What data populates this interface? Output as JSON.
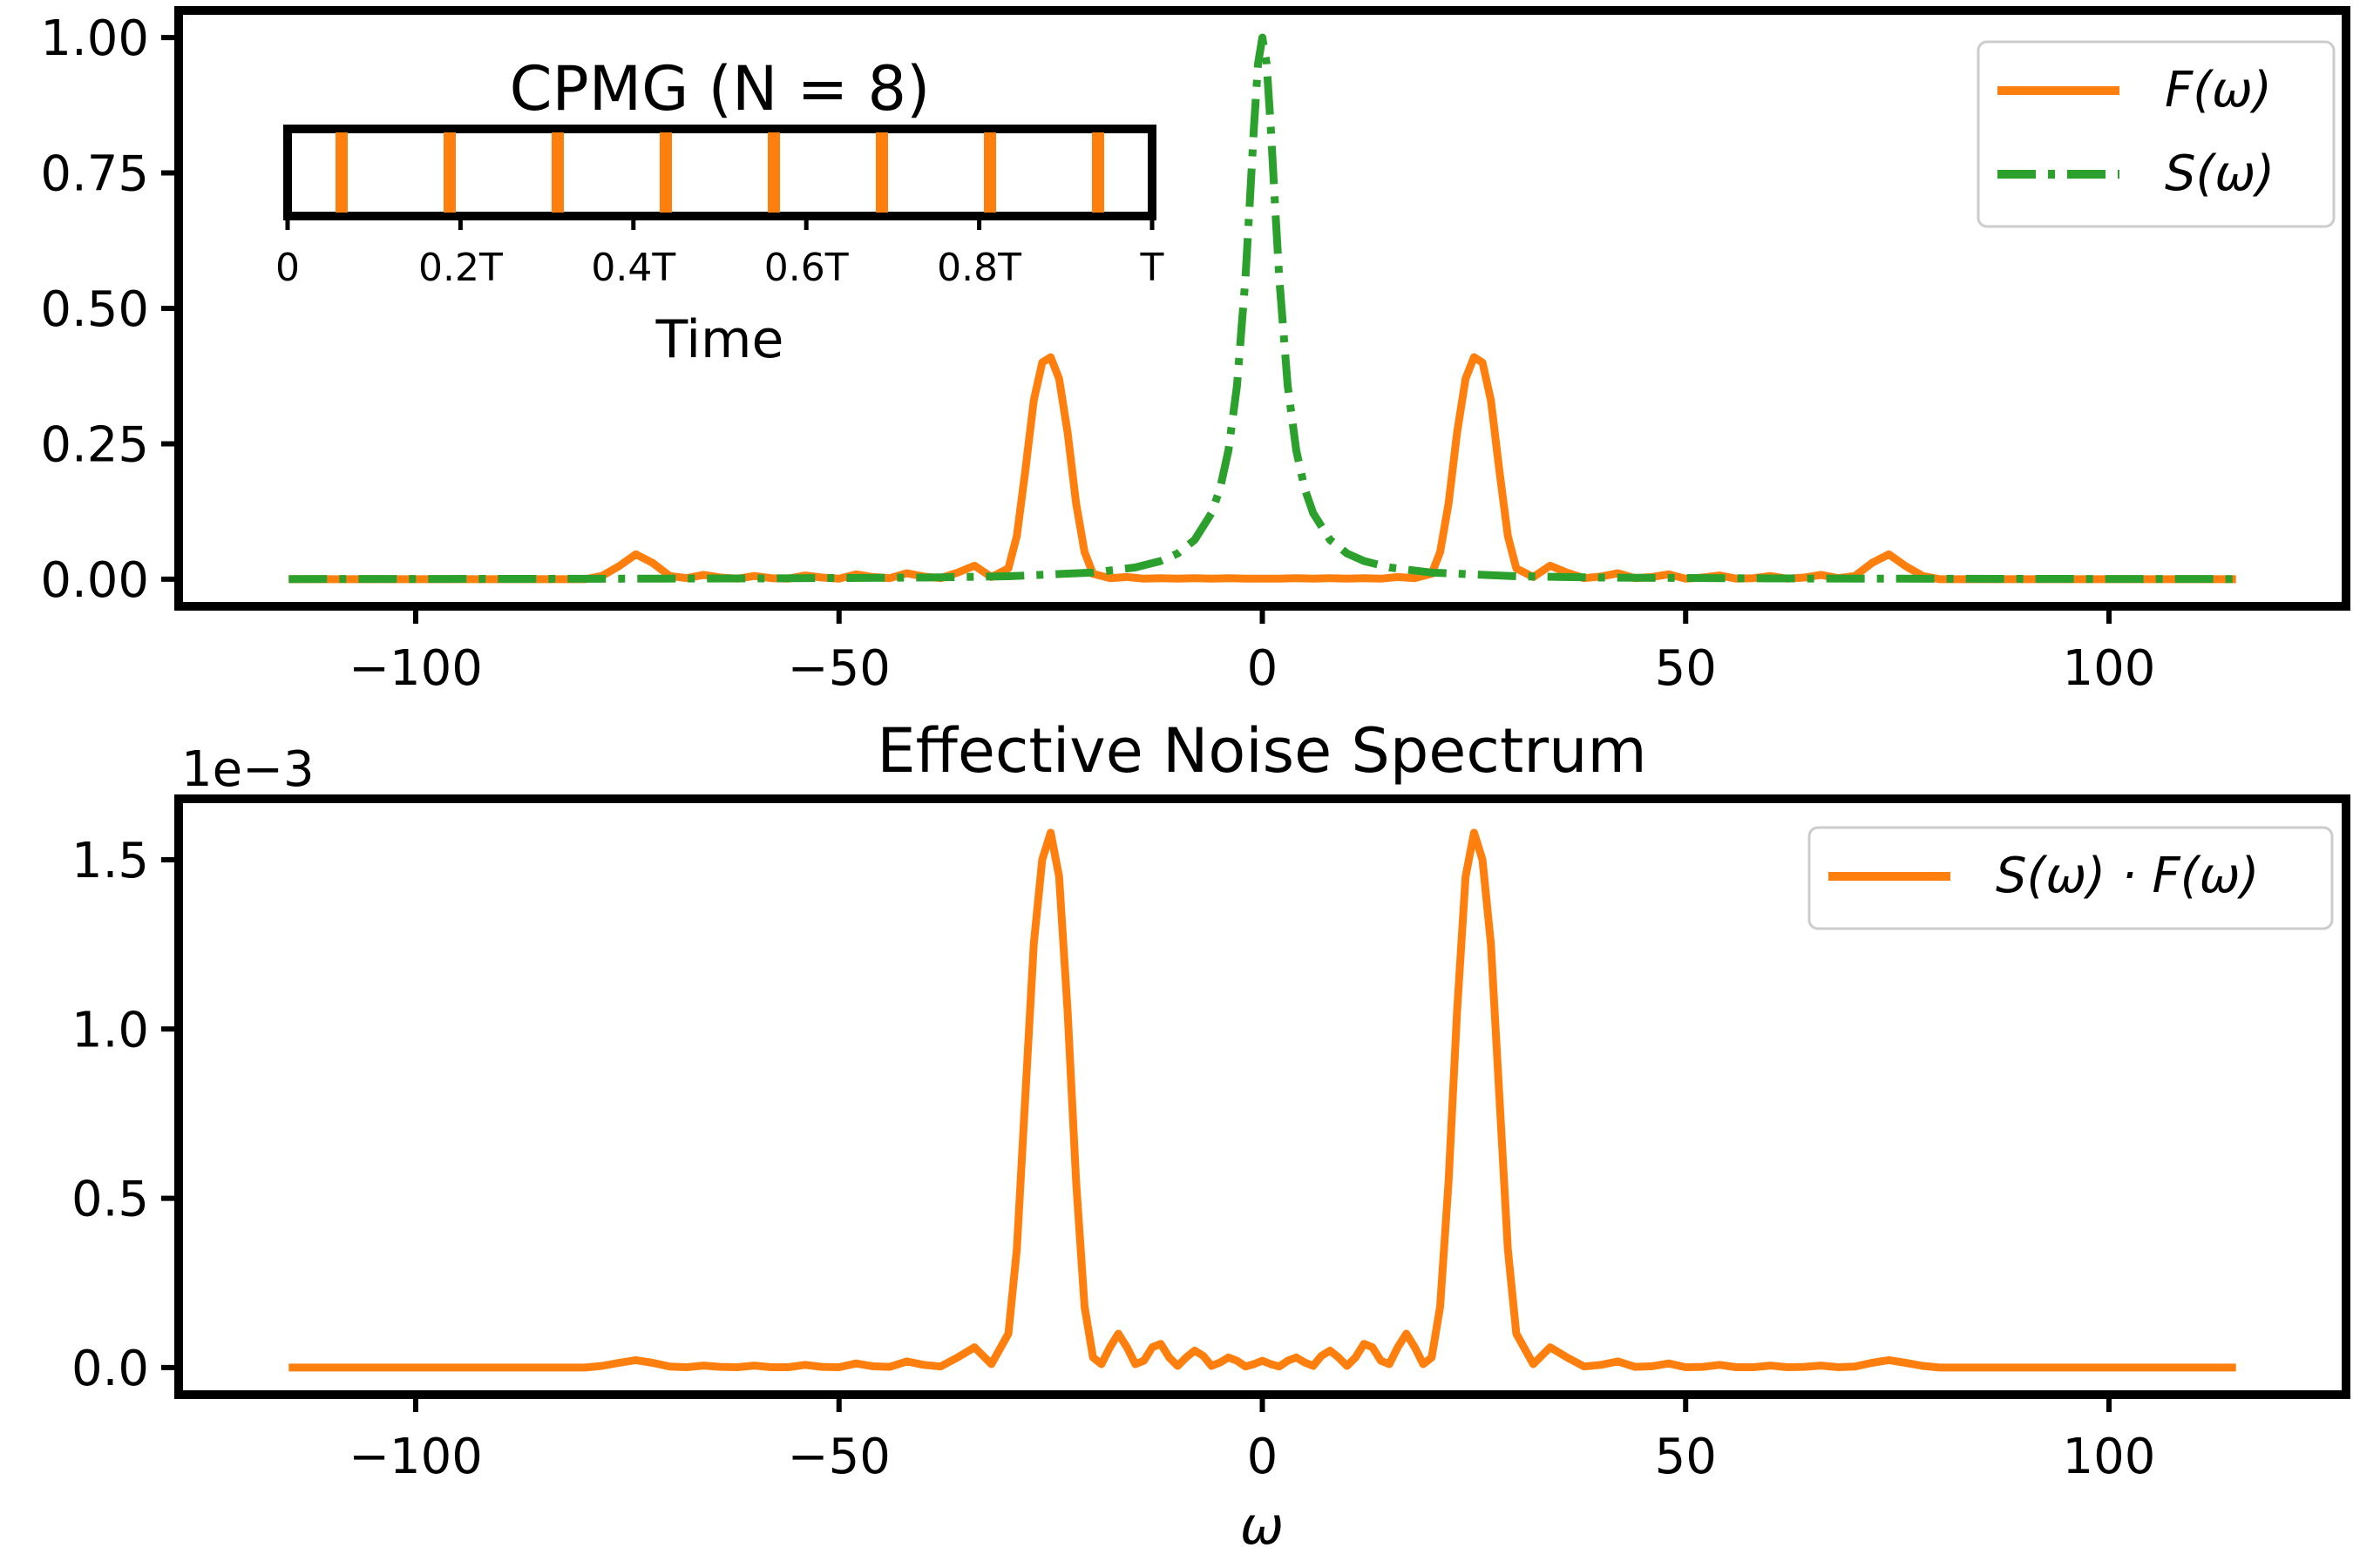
{
  "colors": {
    "F": "#ff7f0e",
    "S": "#2ca02c",
    "axis": "#000000"
  },
  "chart_data": [
    {
      "type": "line",
      "title": "",
      "xlabel": "",
      "ylabel": "",
      "xlim": [
        -128,
        128
      ],
      "ylim": [
        -0.05,
        1.05
      ],
      "xticks": [
        -100,
        -50,
        0,
        50,
        100
      ],
      "xtick_labels": [
        "−100",
        "−50",
        "0",
        "50",
        "100"
      ],
      "yticks": [
        0,
        0.25,
        0.5,
        0.75,
        1.0
      ],
      "ytick_labels": [
        "0.00",
        "0.25",
        "0.50",
        "0.75",
        "1.00"
      ],
      "legend_position": "top-right",
      "legend": [
        "F(ω)",
        "S(ω)"
      ],
      "series": [
        {
          "name": "F(ω)",
          "style": "solid",
          "color": "#ff7f0e",
          "x": [
            -115,
            -80,
            -78,
            -76,
            -74,
            -72,
            -70,
            -68,
            -66,
            -64,
            -62,
            -60,
            -58,
            -56,
            -54,
            -52,
            -50,
            -48,
            -46,
            -44,
            -42,
            -40,
            -38,
            -36,
            -34,
            -32,
            -30,
            -29,
            -28,
            -27,
            -26,
            -25,
            -24,
            -23,
            -22,
            -21,
            -20,
            -18,
            -16,
            -14,
            -12,
            -10,
            -8,
            -6,
            -4,
            -2,
            0,
            2,
            4,
            6,
            8,
            10,
            12,
            14,
            16,
            18,
            20,
            21,
            22,
            23,
            24,
            25,
            26,
            27,
            28,
            29,
            30,
            32,
            34,
            36,
            38,
            40,
            42,
            44,
            46,
            48,
            50,
            52,
            54,
            56,
            58,
            60,
            62,
            64,
            66,
            68,
            70,
            72,
            74,
            76,
            78,
            80,
            115
          ],
          "y": [
            0,
            0,
            0.006,
            0.024,
            0.046,
            0.03,
            0.006,
            0.002,
            0.008,
            0.003,
            0.001,
            0.006,
            0.002,
            0.001,
            0.007,
            0.003,
            0.001,
            0.009,
            0.004,
            0.002,
            0.011,
            0.005,
            0.002,
            0.012,
            0.025,
            0.004,
            0.02,
            0.08,
            0.2,
            0.33,
            0.4,
            0.41,
            0.37,
            0.27,
            0.14,
            0.05,
            0.01,
            0.002,
            0.004,
            0.001,
            0.002,
            0.001,
            0.002,
            0.001,
            0.002,
            0.001,
            0.001,
            0.001,
            0.002,
            0.001,
            0.002,
            0.001,
            0.002,
            0.001,
            0.004,
            0.002,
            0.01,
            0.05,
            0.14,
            0.27,
            0.37,
            0.41,
            0.4,
            0.33,
            0.2,
            0.08,
            0.02,
            0.004,
            0.025,
            0.012,
            0.002,
            0.005,
            0.011,
            0.002,
            0.004,
            0.009,
            0.001,
            0.003,
            0.007,
            0.001,
            0.002,
            0.006,
            0.001,
            0.003,
            0.008,
            0.002,
            0.006,
            0.03,
            0.046,
            0.024,
            0.006,
            0,
            0
          ]
        },
        {
          "name": "S(ω)",
          "style": "dashdot",
          "color": "#2ca02c",
          "x": [
            -115,
            -100,
            -80,
            -60,
            -40,
            -30,
            -20,
            -15,
            -12,
            -10,
            -8,
            -6,
            -5,
            -4,
            -3,
            -2,
            -1.5,
            -1,
            -0.5,
            0,
            0.5,
            1,
            1.5,
            2,
            3,
            4,
            5,
            6,
            8,
            10,
            12,
            15,
            20,
            30,
            40,
            60,
            80,
            100,
            115
          ],
          "y": [
            0.0004,
            0.0005,
            0.0008,
            0.0014,
            0.0031,
            0.0055,
            0.0123,
            0.0217,
            0.0336,
            0.0476,
            0.0725,
            0.122,
            0.167,
            0.238,
            0.357,
            0.556,
            0.69,
            0.833,
            0.952,
            1.0,
            0.952,
            0.833,
            0.69,
            0.556,
            0.357,
            0.238,
            0.167,
            0.122,
            0.0725,
            0.0476,
            0.0336,
            0.0217,
            0.0123,
            0.0055,
            0.0031,
            0.0014,
            0.0008,
            0.0005,
            0.0004
          ]
        }
      ],
      "inset": {
        "title": "CPMG (N = 8)",
        "xlabel": "Time",
        "xtick_labels": [
          "0",
          "0.2T",
          "0.4T",
          "0.6T",
          "0.8T",
          "T"
        ],
        "pulse_times": [
          0.0625,
          0.1875,
          0.3125,
          0.4375,
          0.5625,
          0.6875,
          0.8125,
          0.9375
        ]
      }
    },
    {
      "type": "line",
      "title": "Effective Noise Spectrum",
      "xlabel": "ω",
      "ylabel": "",
      "scale_label": "1e−3",
      "xlim": [
        -128,
        128
      ],
      "ylim": [
        -0.08,
        1.68
      ],
      "xticks": [
        -100,
        -50,
        0,
        50,
        100
      ],
      "xtick_labels": [
        "−100",
        "−50",
        "0",
        "50",
        "100"
      ],
      "yticks": [
        0,
        0.5,
        1.0,
        1.5
      ],
      "ytick_labels": [
        "0.0",
        "0.5",
        "1.0",
        "1.5"
      ],
      "legend_position": "top-right",
      "legend": [
        "S(ω) · F(ω)"
      ],
      "series": [
        {
          "name": "S(ω) · F(ω)",
          "style": "solid",
          "color": "#ff7f0e",
          "x": [
            -115,
            -80,
            -78,
            -76,
            -74,
            -72,
            -70,
            -68,
            -66,
            -64,
            -62,
            -60,
            -58,
            -56,
            -54,
            -52,
            -50,
            -48,
            -46,
            -44,
            -42,
            -40,
            -38,
            -36,
            -34,
            -32,
            -30,
            -29,
            -28,
            -27,
            -26,
            -25,
            -24,
            -23,
            -22,
            -21,
            -20,
            -19,
            -18,
            -17,
            -16,
            -15,
            -14,
            -13,
            -12,
            -11,
            -10,
            -9,
            -8,
            -7,
            -6,
            -5,
            -4,
            -3,
            -2,
            -1,
            0,
            1,
            2,
            3,
            4,
            5,
            6,
            7,
            8,
            9,
            10,
            11,
            12,
            13,
            14,
            15,
            16,
            17,
            18,
            19,
            20,
            21,
            22,
            23,
            24,
            25,
            26,
            27,
            28,
            29,
            30,
            32,
            34,
            36,
            38,
            40,
            42,
            44,
            46,
            48,
            50,
            52,
            54,
            56,
            58,
            60,
            62,
            64,
            66,
            68,
            70,
            72,
            74,
            76,
            78,
            80,
            115
          ],
          "y": [
            0,
            0,
            0.005,
            0.014,
            0.022,
            0.014,
            0.003,
            0.001,
            0.006,
            0.002,
            0.001,
            0.006,
            0.001,
            0.001,
            0.008,
            0.002,
            0.001,
            0.012,
            0.004,
            0.002,
            0.018,
            0.008,
            0.003,
            0.03,
            0.06,
            0.01,
            0.1,
            0.35,
            0.8,
            1.25,
            1.5,
            1.58,
            1.45,
            1.05,
            0.55,
            0.18,
            0.03,
            0.01,
            0.06,
            0.1,
            0.06,
            0.01,
            0.02,
            0.06,
            0.07,
            0.03,
            0.005,
            0.03,
            0.05,
            0.035,
            0.005,
            0.015,
            0.03,
            0.02,
            0.003,
            0.01,
            0.02,
            0.01,
            0.003,
            0.02,
            0.03,
            0.015,
            0.005,
            0.035,
            0.05,
            0.03,
            0.005,
            0.03,
            0.07,
            0.06,
            0.02,
            0.01,
            0.06,
            0.1,
            0.06,
            0.01,
            0.03,
            0.18,
            0.55,
            1.05,
            1.45,
            1.58,
            1.5,
            1.25,
            0.8,
            0.35,
            0.1,
            0.01,
            0.06,
            0.03,
            0.003,
            0.008,
            0.018,
            0.002,
            0.004,
            0.012,
            0.001,
            0.002,
            0.008,
            0.001,
            0.001,
            0.006,
            0.001,
            0.002,
            0.006,
            0.001,
            0.003,
            0.014,
            0.022,
            0.014,
            0.005,
            0,
            0
          ]
        }
      ]
    }
  ]
}
